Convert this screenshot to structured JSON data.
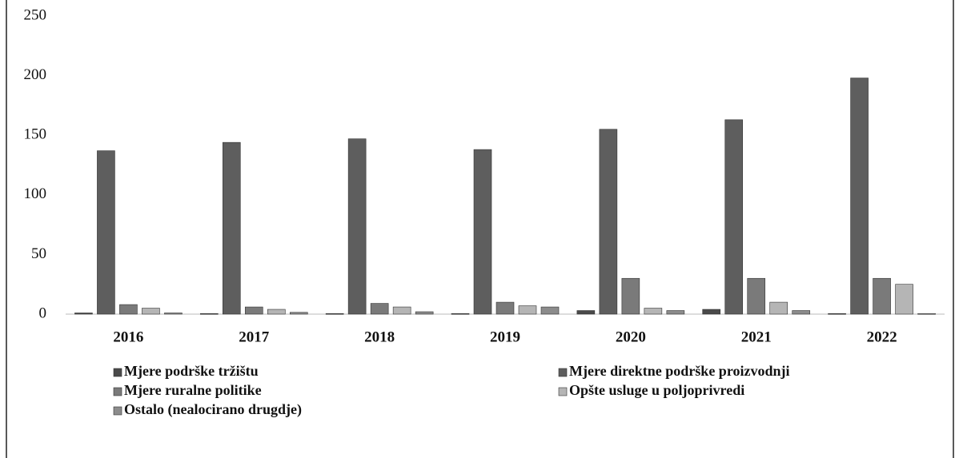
{
  "chart_data": {
    "type": "bar",
    "categories": [
      "2016",
      "2017",
      "2018",
      "2019",
      "2020",
      "2021",
      "2022"
    ],
    "series": [
      {
        "name": "Mjere podrške tržištu",
        "color": "#4a4a4a",
        "values": [
          1,
          0.5,
          0.5,
          0.5,
          3,
          4,
          0.5
        ]
      },
      {
        "name": "Mjere direktne podrške proizvodnji",
        "color": "#5e5e5e",
        "values": [
          137,
          144,
          147,
          138,
          155,
          163,
          198
        ]
      },
      {
        "name": "Mjere ruralne politike",
        "color": "#7a7a7a",
        "values": [
          8,
          6,
          9,
          10,
          30,
          30,
          30
        ]
      },
      {
        "name": "Opšte usluge u poljoprivredi",
        "color": "#b5b5b5",
        "values": [
          5,
          4,
          6,
          7,
          5,
          10,
          25
        ]
      },
      {
        "name": "Ostalo (nealocirano drugdje)",
        "color": "#8c8c8c",
        "values": [
          1,
          1.5,
          2,
          6,
          3,
          3,
          0.5
        ]
      }
    ],
    "ylim": [
      0,
      250
    ],
    "yticks": [
      0,
      50,
      100,
      150,
      200,
      250
    ]
  }
}
